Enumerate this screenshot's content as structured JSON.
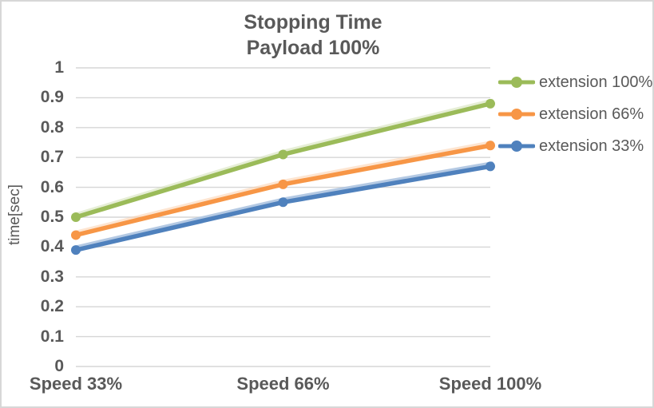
{
  "window": {
    "background": "#ffffff",
    "border_color": "#d7d7d7"
  },
  "chart_data": {
    "type": "line",
    "title": "Stopping Time",
    "subtitle": "Payload 100%",
    "ylabel": "time[sec]",
    "xlabel": "",
    "categories": [
      "Speed 33%",
      "Speed 66%",
      "Speed 100%"
    ],
    "series": [
      {
        "name": "extension 100%",
        "color": "#9BBB59",
        "values": [
          0.5,
          0.71,
          0.88
        ]
      },
      {
        "name": "extension 66%",
        "color": "#F79646",
        "values": [
          0.44,
          0.61,
          0.74
        ]
      },
      {
        "name": "extension 33%",
        "color": "#4F81BD",
        "values": [
          0.39,
          0.55,
          0.67
        ]
      }
    ],
    "ylim": [
      0,
      1
    ],
    "ytick_step": 0.1,
    "yticks": [
      "0",
      "0.1",
      "0.2",
      "0.3",
      "0.4",
      "0.5",
      "0.6",
      "0.7",
      "0.8",
      "0.9",
      "1"
    ],
    "grid": true,
    "grid_color": "#d6d6d6",
    "text_color": "#595959",
    "legend_position": "right",
    "marker": "circle"
  }
}
